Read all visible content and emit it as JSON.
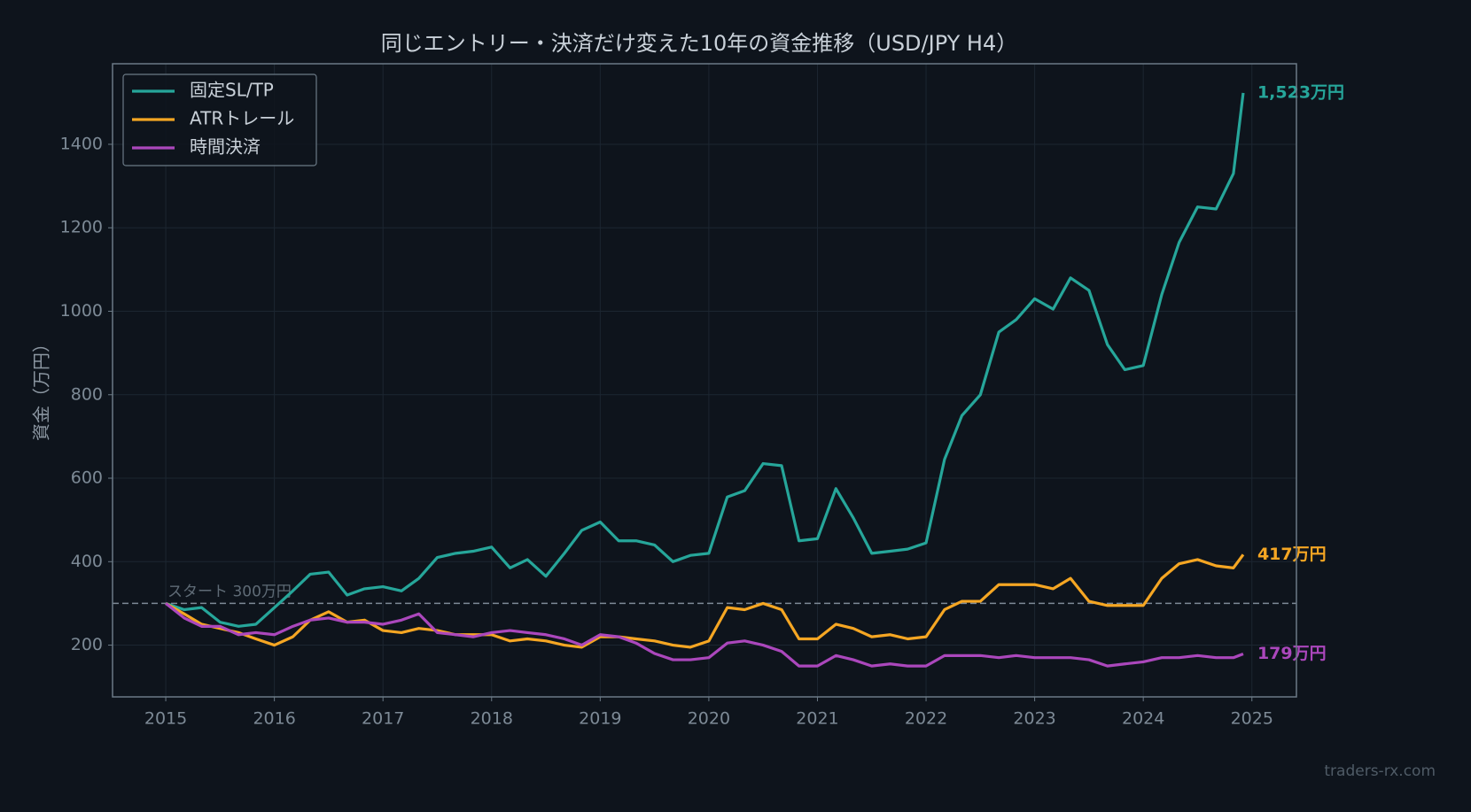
{
  "chart_data": {
    "type": "line",
    "title": "同じエントリー・決済だけ変えた10年の資金推移（USD/JPY H4）",
    "y_label": "資金（万円）",
    "watermark": "traders-rx.com",
    "x": [
      2015,
      2015.17,
      2015.33,
      2015.5,
      2015.67,
      2015.83,
      2016,
      2016.17,
      2016.33,
      2016.5,
      2016.67,
      2016.83,
      2017,
      2017.17,
      2017.33,
      2017.5,
      2017.67,
      2017.83,
      2018,
      2018.17,
      2018.33,
      2018.5,
      2018.67,
      2018.83,
      2019,
      2019.17,
      2019.33,
      2019.5,
      2019.67,
      2019.83,
      2020,
      2020.17,
      2020.33,
      2020.5,
      2020.67,
      2020.83,
      2021,
      2021.17,
      2021.33,
      2021.5,
      2021.67,
      2021.83,
      2022,
      2022.17,
      2022.33,
      2022.5,
      2022.67,
      2022.83,
      2023,
      2023.17,
      2023.33,
      2023.5,
      2023.67,
      2023.83,
      2024,
      2024.17,
      2024.33,
      2024.5,
      2024.67,
      2024.83,
      2024.92
    ],
    "series": [
      {
        "name": "固定SL/TP",
        "color": "#26a69a",
        "end_label": "1,523万円",
        "values": [
          300,
          285,
          290,
          255,
          245,
          250,
          290,
          330,
          370,
          375,
          320,
          335,
          340,
          330,
          360,
          410,
          420,
          425,
          435,
          385,
          405,
          365,
          420,
          475,
          495,
          450,
          450,
          440,
          400,
          415,
          420,
          555,
          570,
          635,
          630,
          450,
          455,
          575,
          505,
          420,
          425,
          430,
          445,
          645,
          750,
          800,
          950,
          980,
          1030,
          1005,
          1080,
          1050,
          920,
          860,
          870,
          1040,
          1165,
          1250,
          1245,
          1330,
          1523
        ]
      },
      {
        "name": "ATRトレール",
        "color": "#f5a623",
        "end_label": "417万円",
        "values": [
          300,
          275,
          250,
          240,
          230,
          215,
          200,
          220,
          260,
          280,
          255,
          260,
          235,
          230,
          240,
          235,
          225,
          225,
          225,
          210,
          215,
          210,
          200,
          195,
          220,
          220,
          215,
          210,
          200,
          195,
          210,
          290,
          285,
          300,
          285,
          215,
          215,
          250,
          240,
          220,
          225,
          215,
          220,
          285,
          305,
          305,
          345,
          345,
          345,
          335,
          360,
          305,
          295,
          295,
          295,
          360,
          395,
          405,
          390,
          385,
          417
        ]
      },
      {
        "name": "時間決済",
        "color": "#ab47bc",
        "end_label": "179万円",
        "values": [
          300,
          265,
          245,
          245,
          225,
          230,
          225,
          245,
          260,
          265,
          255,
          255,
          250,
          260,
          275,
          230,
          225,
          220,
          230,
          235,
          230,
          225,
          215,
          200,
          225,
          220,
          205,
          180,
          165,
          165,
          170,
          205,
          210,
          200,
          185,
          150,
          150,
          175,
          165,
          150,
          155,
          150,
          150,
          175,
          175,
          175,
          170,
          175,
          170,
          170,
          170,
          165,
          150,
          155,
          160,
          170,
          170,
          175,
          170,
          170,
          179
        ]
      }
    ],
    "reference": {
      "value": 300,
      "label": "スタート 300万円"
    },
    "xlim": [
      2014.51,
      2025.41
    ],
    "xticks": [
      2015,
      2016,
      2017,
      2018,
      2019,
      2020,
      2021,
      2022,
      2023,
      2024,
      2025
    ],
    "ylim": [
      76,
      1593
    ],
    "yticks": [
      200,
      400,
      600,
      800,
      1000,
      1200,
      1400
    ],
    "grid": true,
    "legend": "upper left"
  }
}
